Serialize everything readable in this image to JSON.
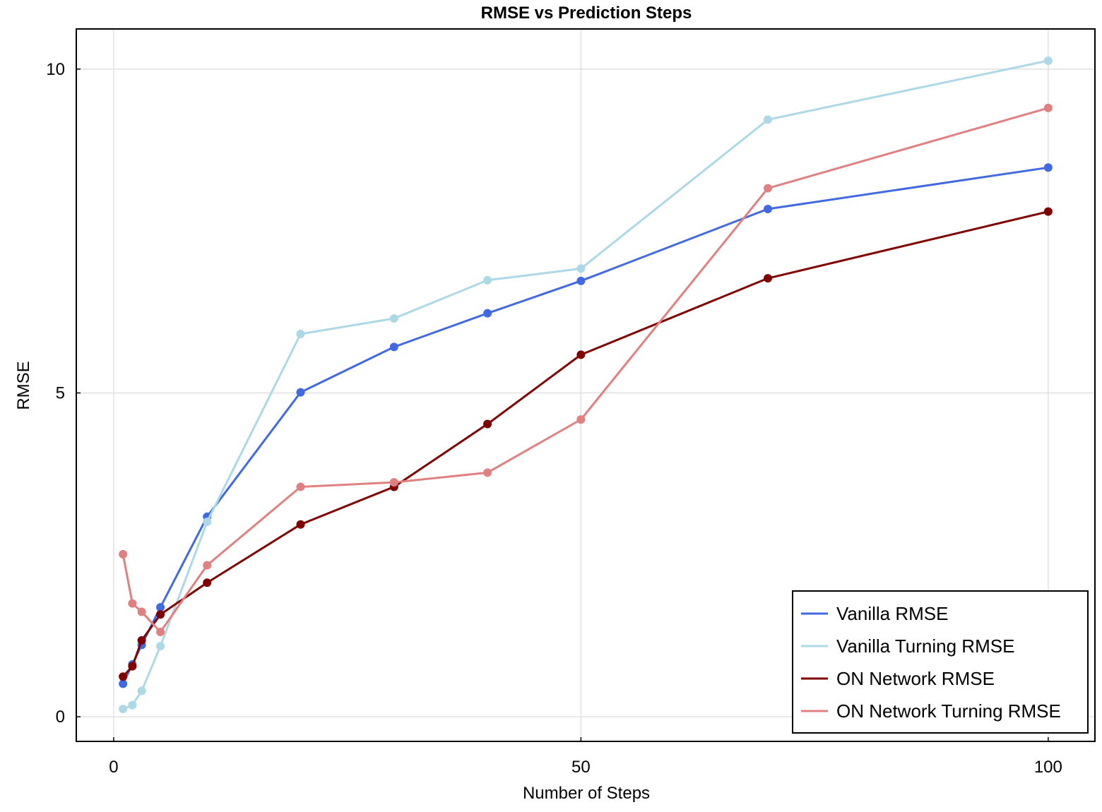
{
  "chart_data": {
    "type": "line",
    "title": "RMSE vs Prediction Steps",
    "xlabel": "Number of Steps",
    "ylabel": "RMSE",
    "xlim": [
      -4,
      105
    ],
    "ylim": [
      -0.38,
      10.62
    ],
    "xticks": [
      0,
      50,
      100
    ],
    "yticks": [
      0,
      5,
      10
    ],
    "grid": true,
    "legend_position": "bottom-right",
    "x": [
      1,
      2,
      3,
      5,
      10,
      20,
      30,
      40,
      50,
      70,
      100
    ],
    "series": [
      {
        "name": "Vanilla RMSE",
        "color": "#4169E1",
        "values": [
          0.51,
          0.81,
          1.11,
          1.69,
          3.09,
          5.01,
          5.71,
          6.23,
          6.73,
          7.84,
          8.48
        ]
      },
      {
        "name": "Vanilla Turning RMSE",
        "color": "#ADD8E6",
        "values": [
          0.12,
          0.18,
          0.4,
          1.09,
          3.01,
          5.91,
          6.15,
          6.74,
          6.92,
          9.22,
          10.13
        ]
      },
      {
        "name": "ON Network RMSE",
        "color": "#800000",
        "values": [
          0.62,
          0.78,
          1.18,
          1.58,
          2.07,
          2.97,
          3.55,
          4.52,
          5.59,
          6.77,
          7.8
        ]
      },
      {
        "name": "ON Network Turning RMSE",
        "color": "#E08080",
        "values": [
          2.51,
          1.75,
          1.62,
          1.31,
          2.34,
          3.55,
          3.62,
          3.77,
          4.59,
          8.16,
          9.4
        ]
      }
    ]
  }
}
